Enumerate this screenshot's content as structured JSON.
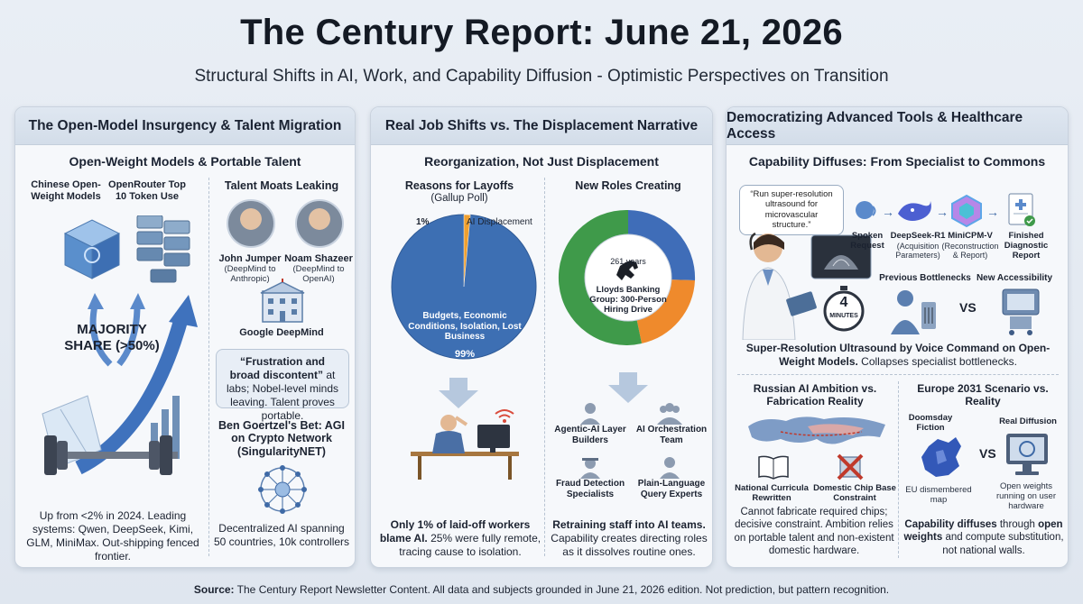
{
  "header": {
    "title": "The Century Report: June 21, 2026",
    "subtitle": "Structural Shifts in AI, Work, and Capability Diffusion - Optimistic Perspectives on Transition"
  },
  "panel1": {
    "title": "The Open-Model Insurgency & Talent Migration",
    "subtitle": "Open-Weight Models & Portable Talent",
    "chinese_label": "Chinese Open-Weight Models",
    "openrouter_label": "OpenRouter Top 10 Token Use",
    "majority_label": "MAJORITY SHARE (>50%)",
    "caption": "Up from <2% in 2024. Leading systems: Qwen, DeepSeek, Kimi, GLM, MiniMax. Out-shipping fenced frontier.",
    "talent_title": "Talent Moats Leaking",
    "person1_name": "John Jumper",
    "person1_note": "(DeepMind to Anthropic)",
    "person2_name": "Noam Shazeer",
    "person2_note": "(DeepMind to OpenAI)",
    "org_label": "Google DeepMind",
    "quote_bold": "“Frustration and broad discontent”",
    "quote_rest": " at labs; Nobel-level minds leaving. Talent proves portable.",
    "bet_title": "Ben Goertzel's Bet: AGI on Crypto Network (SingularityNET)",
    "bet_caption": "Decentralized AI spanning 50 countries, 10k controllers"
  },
  "panel2": {
    "title": "Real Job Shifts vs. The Displacement Narrative",
    "subtitle": "Reorganization, Not Just Displacement",
    "pie_title": "Reasons for Layoffs",
    "pie_source": "(Gallup Poll)",
    "ai_slice_pct": "1%",
    "ai_slice_label": "AI Displacement",
    "main_slice_label": "Budgets, Economic Conditions, Isolation, Lost Business",
    "main_slice_pct": "99%",
    "caption_bold": "Only 1% of laid-off workers blame AI.",
    "caption_rest": " 25% were fully remote, tracing cause to isolation.",
    "roles_title": "New Roles Creating",
    "donut_years": "261 years",
    "donut_center": "Lloyds Banking Group: 300-Person Hiring Drive",
    "roles": [
      "Agentic-AI Layer Builders",
      "AI Orchestration Team",
      "Fraud Detection Specialists",
      "Plain-Language Query Experts"
    ],
    "roles_caption_bold": "Retraining staff into AI teams.",
    "roles_caption_rest": " Capability creates directing roles as it dissolves routine ones."
  },
  "panel3": {
    "title": "Democratizing Advanced Tools & Healthcare Access",
    "subtitle": "Capability Diffuses: From Specialist to Commons",
    "speech": "“Run super-resolution ultrasound for microvascular structure.”",
    "steps": [
      {
        "title": "Spoken Request",
        "note": ""
      },
      {
        "title": "DeepSeek-R1",
        "note": "(Acquisition Parameters)"
      },
      {
        "title": "MiniCPM-V",
        "note": "(Reconstruction & Report)"
      },
      {
        "title": "Finished Diagnostic Report",
        "note": ""
      }
    ],
    "prev_label": "Previous Bottlenecks",
    "new_label": "New Accessibility",
    "timer_value": "4",
    "timer_unit": "MINUTES",
    "vs": "VS",
    "ultra_bold": "Super-Resolution Ultrasound by Voice Command on Open-Weight Models.",
    "ultra_rest": " Collapses specialist bottlenecks.",
    "russia_title": "Russian AI Ambition vs. Fabrication Reality",
    "russia_item1": "National Curricula Rewritten",
    "russia_item2": "Domestic Chip Base Constraint",
    "russia_caption": "Cannot fabricate required chips; decisive constraint. Ambition relies on portable talent and non-existent domestic hardware.",
    "europe_title": "Europe 2031 Scenario vs. Reality",
    "doom_label": "Doomsday Fiction",
    "real_label": "Real Diffusion",
    "eu_caption": "EU dismembered map",
    "weights_caption": "Open weights running on user hardware",
    "europe_bold1": "Capability diffuses",
    "europe_mid": " through ",
    "europe_bold2": "open weights",
    "europe_rest": " and compute substitution, not national walls."
  },
  "footer": {
    "source_label": "Source:",
    "source_text": " The Century Report Newsletter Content. All data and subjects grounded in June 21, 2026 edition. Not prediction, but pattern recognition."
  },
  "colors": {
    "pie_main": "#3d6fb3",
    "pie_ai": "#f0a030",
    "donut_blue": "#3f6db8",
    "donut_orange": "#ef8a2c",
    "donut_green": "#3f9a4a"
  },
  "chart_data": [
    {
      "type": "pie",
      "categories": [
        "AI Displacement",
        "Budgets, Economic Conditions, Isolation, Lost Business"
      ],
      "values": [
        1,
        99
      ],
      "title": "Reasons for Layoffs"
    }
  ]
}
